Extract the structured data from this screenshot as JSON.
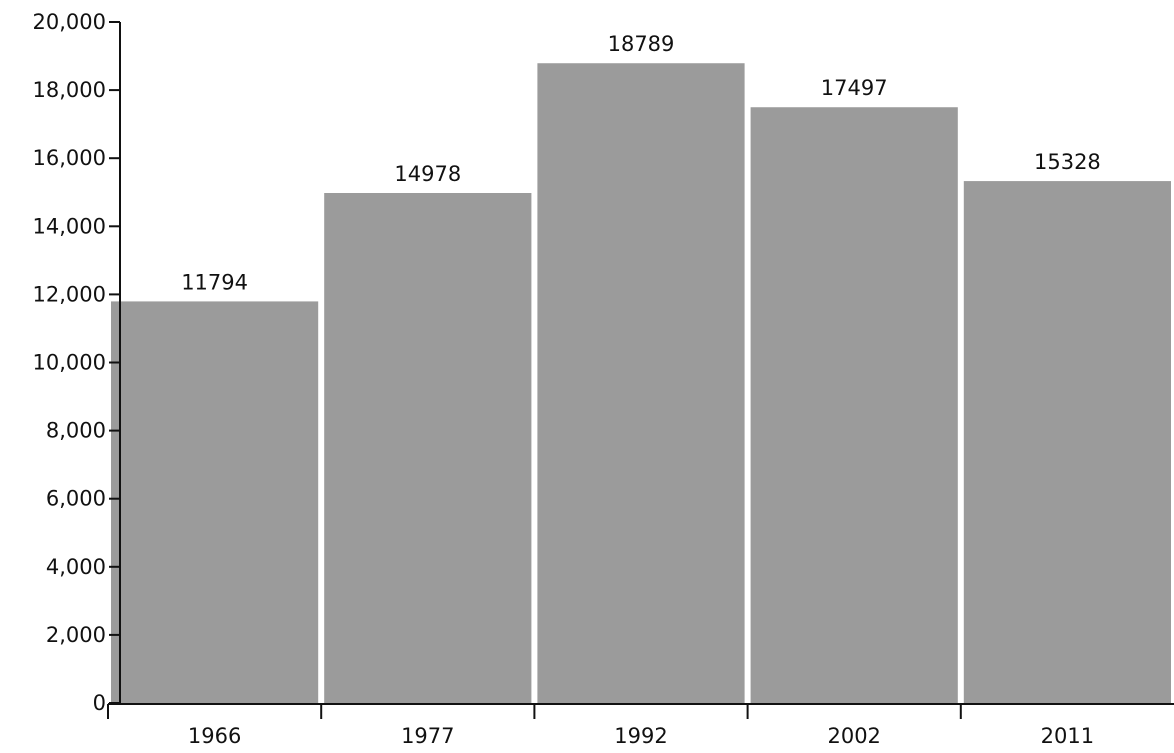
{
  "chart_data": {
    "type": "bar",
    "title": "",
    "xlabel": "",
    "ylabel": "",
    "categories": [
      "1966",
      "1977",
      "1992",
      "2002",
      "2011"
    ],
    "values": [
      11794,
      14978,
      18789,
      17497,
      15328
    ],
    "data_labels": [
      "11794",
      "14978",
      "18789",
      "17497",
      "15328"
    ],
    "ylim": [
      0,
      20000
    ],
    "y_ticks": [
      0,
      2000,
      4000,
      6000,
      8000,
      10000,
      12000,
      14000,
      16000,
      18000,
      20000
    ],
    "y_tick_labels": [
      "0",
      "2,000",
      "4,000",
      "6,000",
      "8,000",
      "10,000",
      "12,000",
      "14,000",
      "16,000",
      "18,000",
      "20,000"
    ],
    "grid": false,
    "legend": "none",
    "bar_color": "#9b9b9b",
    "axis_color": "#111111"
  }
}
